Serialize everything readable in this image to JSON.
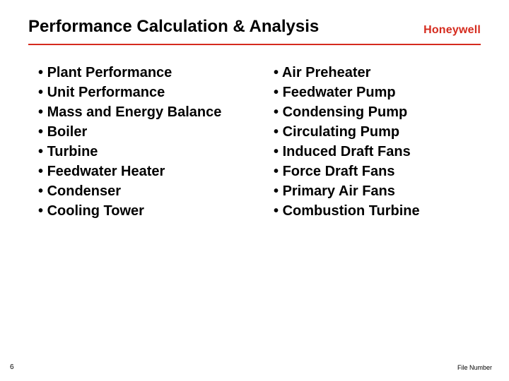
{
  "title": "Performance Calculation & Analysis",
  "logo": "Honeywell",
  "colors": {
    "accent": "#d52b1e",
    "text": "#000000",
    "background": "#ffffff"
  },
  "typography": {
    "title_fontsize": 24,
    "bullet_fontsize": 20,
    "logo_fontsize": 16,
    "footer_fontsize": 10,
    "font_family": "Arial"
  },
  "left_bullets": [
    "Plant Performance",
    "Unit Performance",
    "Mass and Energy Balance",
    "Boiler",
    "Turbine",
    "Feedwater Heater",
    "Condenser",
    "Cooling Tower"
  ],
  "right_bullets": [
    "Air Preheater",
    "Feedwater Pump",
    "Condensing Pump",
    "Circulating Pump",
    "Induced Draft Fans",
    "Force Draft Fans",
    "Primary Air Fans",
    "Combustion Turbine"
  ],
  "page_number": "6",
  "file_number_label": "File Number"
}
